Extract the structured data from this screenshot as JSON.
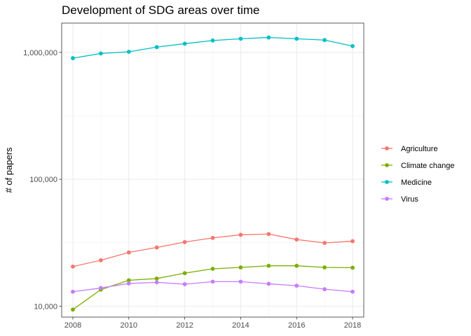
{
  "chart_data": {
    "type": "line",
    "title": "Development of SDG areas over time",
    "xlabel": "",
    "ylabel": "# of papers",
    "yscale": "log10",
    "xlim": [
      2007.6,
      2018.4
    ],
    "ylim": [
      8200,
      1700000
    ],
    "x_ticks": [
      2008,
      2010,
      2012,
      2014,
      2016,
      2018
    ],
    "y_ticks": [
      10000,
      100000,
      1000000
    ],
    "y_tick_labels": [
      "10,000",
      "100,000",
      "1,000,000"
    ],
    "grid": true,
    "legend_position": "right",
    "x": [
      2008,
      2009,
      2010,
      2011,
      2012,
      2013,
      2014,
      2015,
      2016,
      2017,
      2018
    ],
    "series": [
      {
        "name": "Agriculture",
        "color": "#F8766D",
        "values": [
          20500,
          23000,
          26500,
          29000,
          32000,
          34500,
          36500,
          37000,
          33500,
          31500,
          32500
        ]
      },
      {
        "name": "Climate change",
        "color": "#7CAE00",
        "values": [
          9400,
          13500,
          16000,
          16500,
          18200,
          19700,
          20200,
          20800,
          20800,
          20200,
          20100
        ]
      },
      {
        "name": "Medicine",
        "color": "#00BFC4",
        "values": [
          900000,
          980000,
          1010000,
          1100000,
          1170000,
          1240000,
          1280000,
          1310000,
          1280000,
          1250000,
          1120000
        ]
      },
      {
        "name": "Virus",
        "color": "#C77CFF",
        "values": [
          13000,
          13900,
          15100,
          15400,
          14900,
          15600,
          15600,
          15000,
          14500,
          13600,
          13000
        ]
      }
    ]
  }
}
